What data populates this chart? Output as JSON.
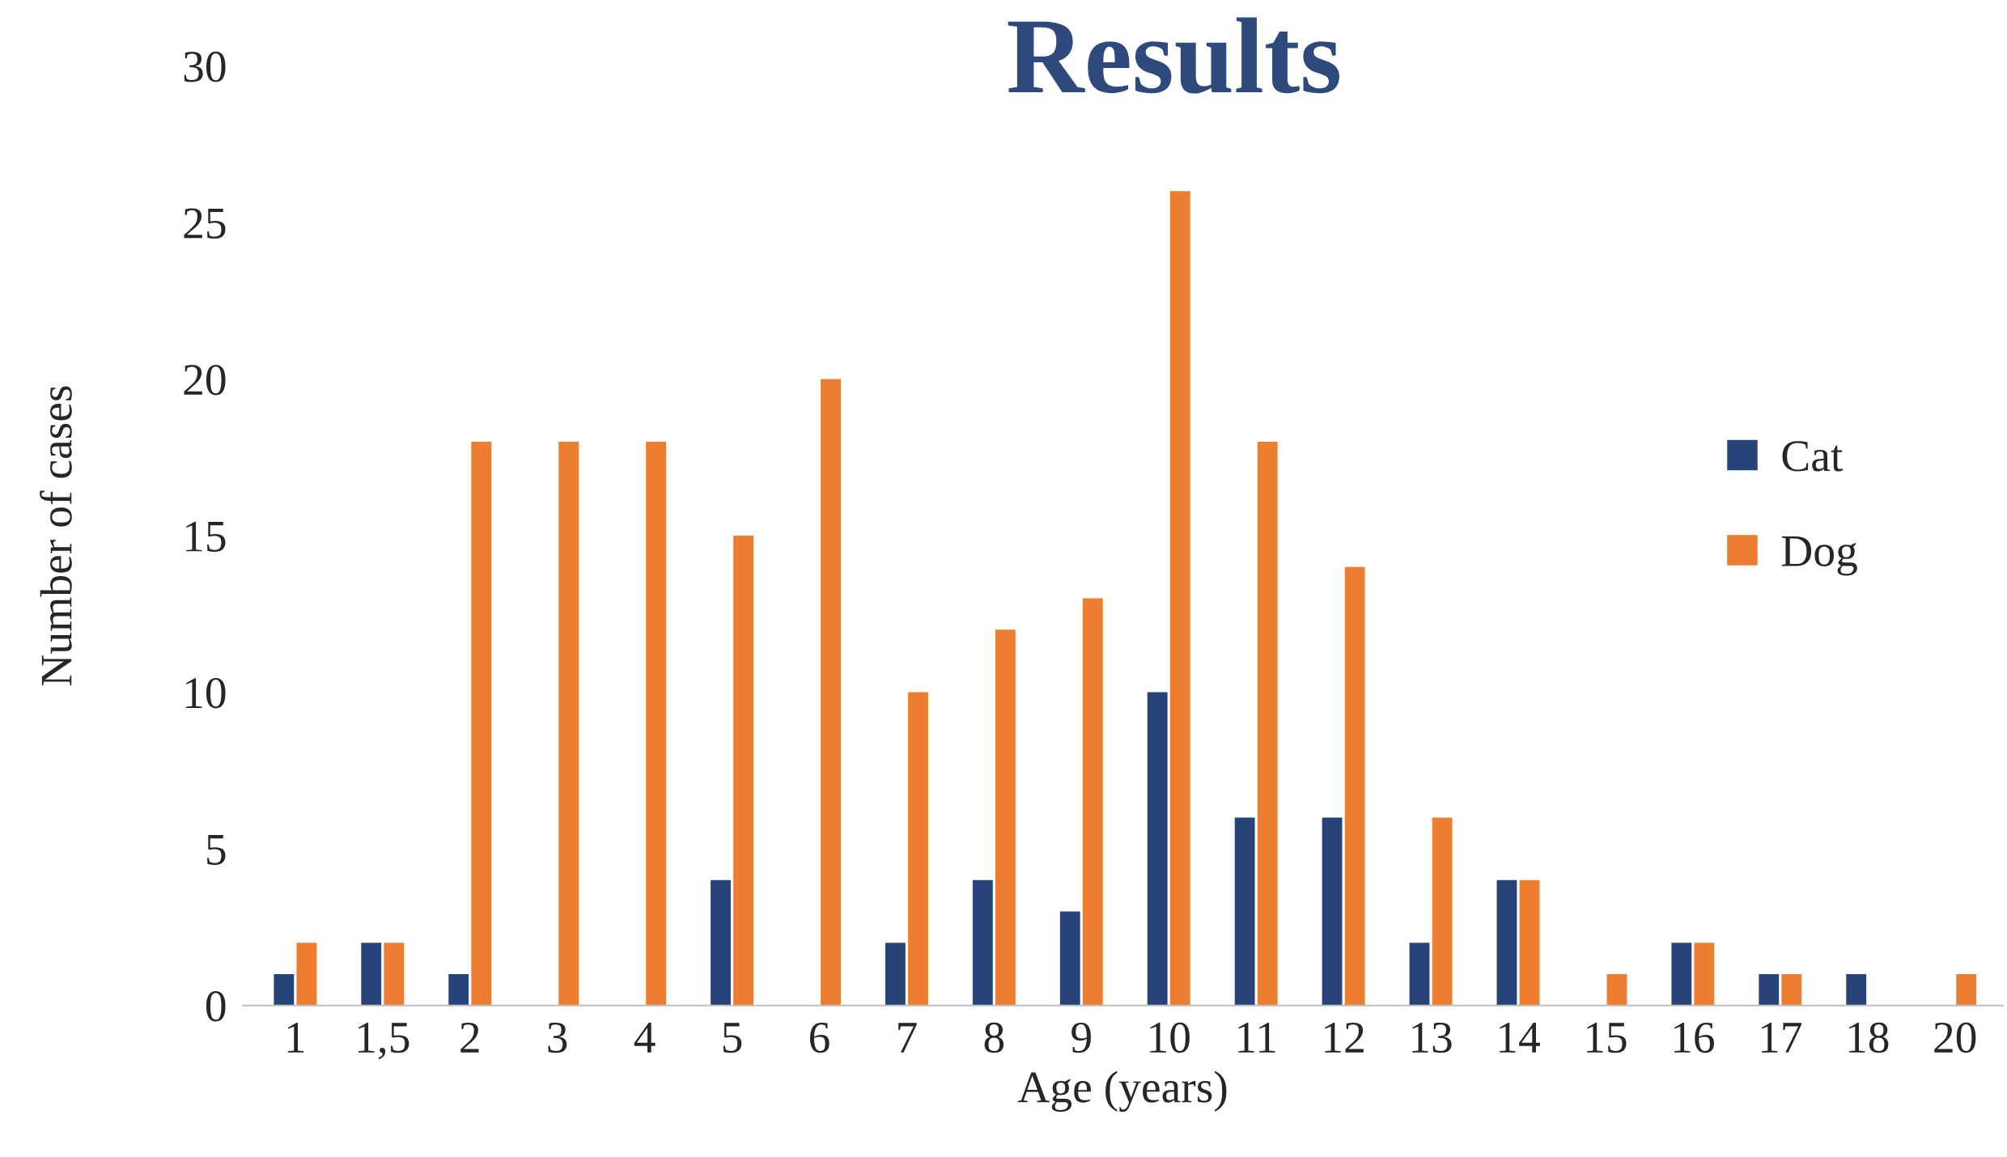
{
  "chart_data": {
    "type": "bar",
    "title": "Results",
    "xlabel": "Age (years)",
    "ylabel": "Number of cases",
    "categories": [
      "1",
      "1,5",
      "2",
      "3",
      "4",
      "5",
      "6",
      "7",
      "8",
      "9",
      "10",
      "11",
      "12",
      "13",
      "14",
      "15",
      "16",
      "17",
      "18",
      "20"
    ],
    "series": [
      {
        "name": "Cat",
        "color": "#264478",
        "values": [
          1,
          2,
          1,
          0,
          0,
          4,
          0,
          2,
          4,
          3,
          10,
          6,
          6,
          2,
          4,
          0,
          2,
          1,
          1,
          0
        ]
      },
      {
        "name": "Dog",
        "color": "#ed7d31",
        "values": [
          2,
          2,
          18,
          18,
          18,
          15,
          20,
          10,
          12,
          13,
          26,
          18,
          14,
          6,
          4,
          1,
          2,
          1,
          0,
          1
        ]
      }
    ],
    "ylim": [
      0,
      30
    ],
    "yticks": [
      0,
      5,
      10,
      15,
      20,
      25,
      30
    ],
    "grid": false,
    "legend": "right"
  }
}
